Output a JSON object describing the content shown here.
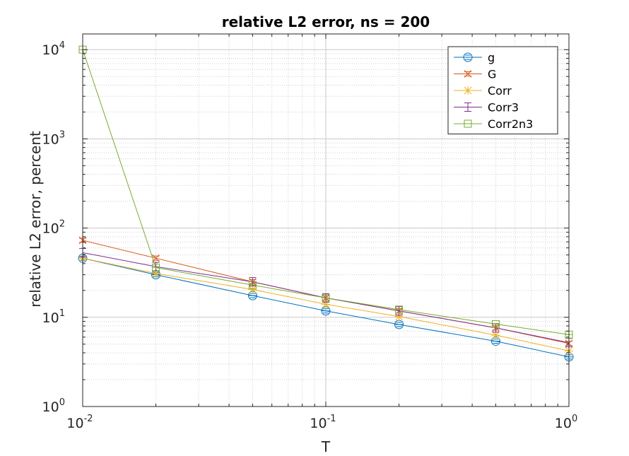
{
  "chart_data": {
    "type": "line",
    "title": "relative L2 error, ns = 200",
    "xlabel": "T",
    "ylabel": "relative L2 error, percent",
    "x_scale": "log",
    "y_scale": "log",
    "xlim": [
      0.01,
      1
    ],
    "ylim": [
      1,
      15000
    ],
    "x_ticks": [
      {
        "value": 0.01,
        "base": "10",
        "exp": "-2"
      },
      {
        "value": 0.1,
        "base": "10",
        "exp": "-1"
      },
      {
        "value": 1,
        "base": "10",
        "exp": "0"
      }
    ],
    "y_ticks": [
      {
        "value": 1,
        "base": "10",
        "exp": "0"
      },
      {
        "value": 10,
        "base": "10",
        "exp": "1"
      },
      {
        "value": 100,
        "base": "10",
        "exp": "2"
      },
      {
        "value": 1000,
        "base": "10",
        "exp": "3"
      },
      {
        "value": 10000,
        "base": "10",
        "exp": "4"
      }
    ],
    "grid": true,
    "minor_grid": true,
    "legend_position": "top-right",
    "x": [
      0.01,
      0.02,
      0.05,
      0.1,
      0.2,
      0.5,
      1
    ],
    "series": [
      {
        "name": "g",
        "marker": "circle",
        "color": "#0072BD",
        "values": [
          46,
          30,
          17.5,
          11.8,
          8.3,
          5.4,
          3.6
        ]
      },
      {
        "name": "G",
        "marker": "x",
        "color": "#D95319",
        "values": [
          73,
          46,
          25,
          16.5,
          11.8,
          7.6,
          5.1
        ]
      },
      {
        "name": "Corr",
        "marker": "asterisk",
        "color": "#EDB120",
        "values": [
          46,
          31,
          20.5,
          14,
          10.2,
          6.3,
          4.2
        ]
      },
      {
        "name": "Corr3",
        "marker": "errorbar",
        "color": "#7E2F8E",
        "values": [
          53,
          37,
          25,
          16.5,
          11.8,
          7.6,
          5.2
        ]
      },
      {
        "name": "Corr2n3",
        "marker": "square",
        "color": "#77AC30",
        "values": [
          10000,
          36,
          23,
          16.5,
          12.2,
          8.4,
          6.4
        ]
      }
    ]
  }
}
